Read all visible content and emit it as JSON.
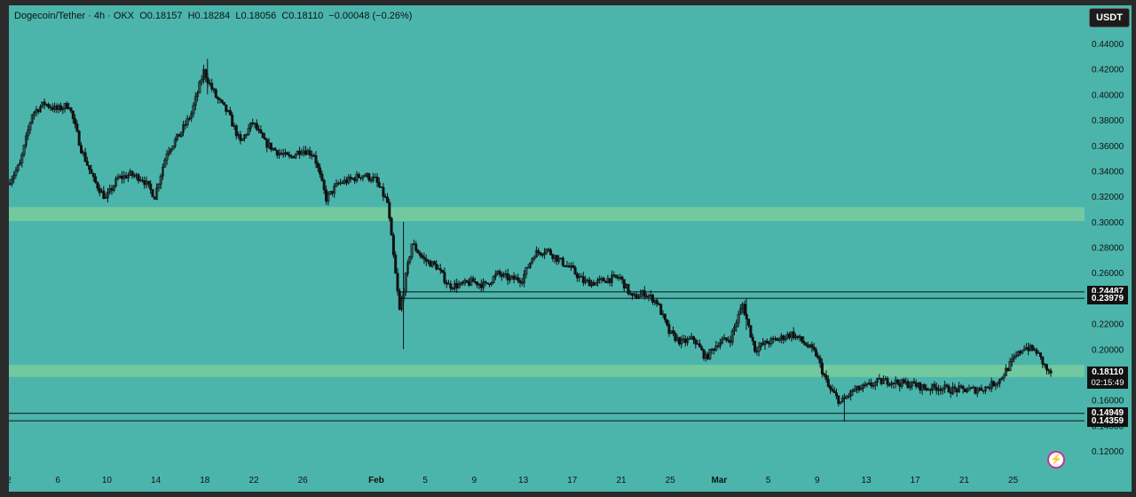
{
  "legend": {
    "symbol": "Dogecoin/Tether · 4h · OKX",
    "open": "O0.18157",
    "high": "H0.18284",
    "low": "L0.18056",
    "close": "C0.18110",
    "change": "−0.00048 (−0.26%)"
  },
  "currency_button": "USDT",
  "countdown": "02:15:49",
  "colors": {
    "background": "#4bb5ac",
    "zone": "#72c9a0",
    "candle": "#111111"
  },
  "chart_data": {
    "type": "candlestick",
    "ylim": [
      0.11,
      0.45
    ],
    "yticks": [
      "0.44000",
      "0.42000",
      "0.40000",
      "0.38000",
      "0.36000",
      "0.34000",
      "0.32000",
      "0.30000",
      "0.28000",
      "0.26000",
      "0.24000",
      "0.22000",
      "0.20000",
      "0.18000",
      "0.16000",
      "0.14000",
      "0.12000"
    ],
    "xticks": [
      {
        "label": "2",
        "date": "2025-01-02"
      },
      {
        "label": "6",
        "date": "2025-01-06"
      },
      {
        "label": "10",
        "date": "2025-01-10"
      },
      {
        "label": "14",
        "date": "2025-01-14"
      },
      {
        "label": "18",
        "date": "2025-01-18"
      },
      {
        "label": "22",
        "date": "2025-01-22"
      },
      {
        "label": "26",
        "date": "2025-01-26"
      },
      {
        "label": "Feb",
        "date": "2025-02-01",
        "bold": true
      },
      {
        "label": "5",
        "date": "2025-02-05"
      },
      {
        "label": "9",
        "date": "2025-02-09"
      },
      {
        "label": "13",
        "date": "2025-02-13"
      },
      {
        "label": "17",
        "date": "2025-02-17"
      },
      {
        "label": "21",
        "date": "2025-02-21"
      },
      {
        "label": "25",
        "date": "2025-02-25"
      },
      {
        "label": "Mar",
        "date": "2025-03-01",
        "bold": true
      },
      {
        "label": "5",
        "date": "2025-03-05"
      },
      {
        "label": "9",
        "date": "2025-03-09"
      },
      {
        "label": "13",
        "date": "2025-03-13"
      },
      {
        "label": "17",
        "date": "2025-03-17"
      },
      {
        "label": "21",
        "date": "2025-03-21"
      },
      {
        "label": "25",
        "date": "2025-03-25"
      }
    ],
    "zones": [
      {
        "from": 0.3005,
        "to": 0.3115
      },
      {
        "from": 0.178,
        "to": 0.1875
      }
    ],
    "levels": [
      {
        "value": 0.24487,
        "label": "0.24487",
        "start_date": "2025-02-03"
      },
      {
        "value": 0.23979,
        "label": "0.23979",
        "start_date": "2025-02-03"
      },
      {
        "value": 0.14949,
        "label": "0.14949",
        "start_date": "2025-01-02"
      },
      {
        "value": 0.14359,
        "label": "0.14359",
        "start_date": "2025-01-02"
      }
    ],
    "last_price": {
      "value": 0.1811,
      "label": "0.18110"
    },
    "price_path": [
      [
        "2025-01-02",
        0.33
      ],
      [
        "2025-01-03",
        0.345
      ],
      [
        "2025-01-04",
        0.385
      ],
      [
        "2025-01-05",
        0.393
      ],
      [
        "2025-01-06",
        0.388
      ],
      [
        "2025-01-07",
        0.392
      ],
      [
        "2025-01-08",
        0.357
      ],
      [
        "2025-01-09",
        0.333
      ],
      [
        "2025-01-10",
        0.318
      ],
      [
        "2025-01-11",
        0.334
      ],
      [
        "2025-01-12",
        0.337
      ],
      [
        "2025-01-13",
        0.334
      ],
      [
        "2025-01-14",
        0.32
      ],
      [
        "2025-01-15",
        0.355
      ],
      [
        "2025-01-16",
        0.368
      ],
      [
        "2025-01-17",
        0.385
      ],
      [
        "2025-01-18",
        0.418
      ],
      [
        "2025-01-19",
        0.398
      ],
      [
        "2025-01-20",
        0.385
      ],
      [
        "2025-01-21",
        0.362
      ],
      [
        "2025-01-22",
        0.378
      ],
      [
        "2025-01-23",
        0.362
      ],
      [
        "2025-01-24",
        0.355
      ],
      [
        "2025-01-25",
        0.35
      ],
      [
        "2025-01-26",
        0.357
      ],
      [
        "2025-01-27",
        0.353
      ],
      [
        "2025-01-28",
        0.318
      ],
      [
        "2025-01-29",
        0.33
      ],
      [
        "2025-01-30",
        0.333
      ],
      [
        "2025-01-31",
        0.337
      ],
      [
        "2025-02-01",
        0.333
      ],
      [
        "2025-02-02",
        0.315
      ],
      [
        "2025-02-03",
        0.23
      ],
      [
        "2025-02-04",
        0.283
      ],
      [
        "2025-02-05",
        0.27
      ],
      [
        "2025-02-06",
        0.265
      ],
      [
        "2025-02-07",
        0.25
      ],
      [
        "2025-02-08",
        0.25
      ],
      [
        "2025-02-09",
        0.253
      ],
      [
        "2025-02-10",
        0.25
      ],
      [
        "2025-02-11",
        0.259
      ],
      [
        "2025-02-12",
        0.255
      ],
      [
        "2025-02-13",
        0.255
      ],
      [
        "2025-02-14",
        0.275
      ],
      [
        "2025-02-15",
        0.278
      ],
      [
        "2025-02-16",
        0.27
      ],
      [
        "2025-02-17",
        0.263
      ],
      [
        "2025-02-18",
        0.253
      ],
      [
        "2025-02-19",
        0.252
      ],
      [
        "2025-02-20",
        0.255
      ],
      [
        "2025-02-21",
        0.256
      ],
      [
        "2025-02-22",
        0.24
      ],
      [
        "2025-02-23",
        0.244
      ],
      [
        "2025-02-24",
        0.237
      ],
      [
        "2025-02-25",
        0.213
      ],
      [
        "2025-02-26",
        0.205
      ],
      [
        "2025-02-27",
        0.208
      ],
      [
        "2025-02-28",
        0.193
      ],
      [
        "2025-03-01",
        0.205
      ],
      [
        "2025-03-02",
        0.208
      ],
      [
        "2025-03-03",
        0.235
      ],
      [
        "2025-03-04",
        0.2
      ],
      [
        "2025-03-05",
        0.205
      ],
      [
        "2025-03-06",
        0.208
      ],
      [
        "2025-03-07",
        0.212
      ],
      [
        "2025-03-08",
        0.205
      ],
      [
        "2025-03-09",
        0.196
      ],
      [
        "2025-03-10",
        0.17
      ],
      [
        "2025-03-11",
        0.158
      ],
      [
        "2025-03-12",
        0.167
      ],
      [
        "2025-03-13",
        0.17
      ],
      [
        "2025-03-14",
        0.174
      ],
      [
        "2025-03-15",
        0.175
      ],
      [
        "2025-03-16",
        0.173
      ],
      [
        "2025-03-17",
        0.172
      ],
      [
        "2025-03-18",
        0.169
      ],
      [
        "2025-03-19",
        0.17
      ],
      [
        "2025-03-20",
        0.168
      ],
      [
        "2025-03-21",
        0.168
      ],
      [
        "2025-03-22",
        0.168
      ],
      [
        "2025-03-23",
        0.17
      ],
      [
        "2025-03-24",
        0.176
      ],
      [
        "2025-03-25",
        0.19
      ],
      [
        "2025-03-26",
        0.202
      ],
      [
        "2025-03-27",
        0.198
      ],
      [
        "2025-03-28",
        0.181
      ]
    ]
  }
}
